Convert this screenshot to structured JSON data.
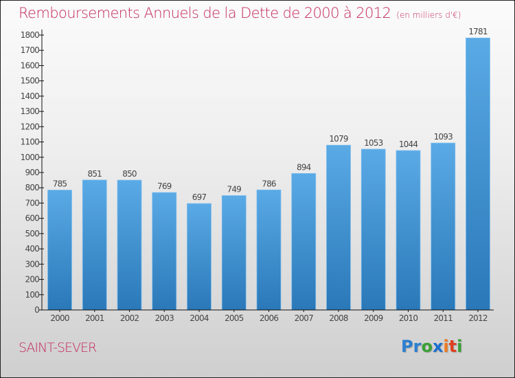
{
  "chart_data": {
    "type": "bar",
    "title": "Remboursements Annuels de la Dette de 2000 à 2012",
    "subtitle": "(en milliers d'€)",
    "xlabel": "",
    "ylabel": "",
    "categories": [
      "2000",
      "2001",
      "2002",
      "2003",
      "2004",
      "2005",
      "2006",
      "2007",
      "2008",
      "2009",
      "2010",
      "2011",
      "2012"
    ],
    "values": [
      785,
      851,
      850,
      769,
      697,
      749,
      786,
      894,
      1079,
      1053,
      1044,
      1093,
      1781
    ],
    "ylim": [
      0,
      1800
    ],
    "yticks": [
      0,
      100,
      200,
      300,
      400,
      500,
      600,
      700,
      800,
      900,
      1000,
      1100,
      1200,
      1300,
      1400,
      1500,
      1600,
      1700,
      1800
    ],
    "grid": false,
    "legend": "none",
    "bar_color_top": "#5aaae6",
    "bar_color_bottom": "#2a78b8"
  },
  "footer": {
    "city": "SAINT-SEVER",
    "logo": [
      {
        "ch": "P",
        "color": "#2b7fd0"
      },
      {
        "ch": "r",
        "color": "#2b7fd0"
      },
      {
        "ch": "o",
        "color": "#3aa035"
      },
      {
        "ch": "x",
        "color": "#1a6fd0"
      },
      {
        "ch": "i",
        "color": "#f07820"
      },
      {
        "ch": "t",
        "color": "#e04020"
      },
      {
        "ch": "i",
        "color": "#3aa035"
      }
    ]
  },
  "colors": {
    "title": "#c42a5c",
    "axis": "#111111"
  }
}
